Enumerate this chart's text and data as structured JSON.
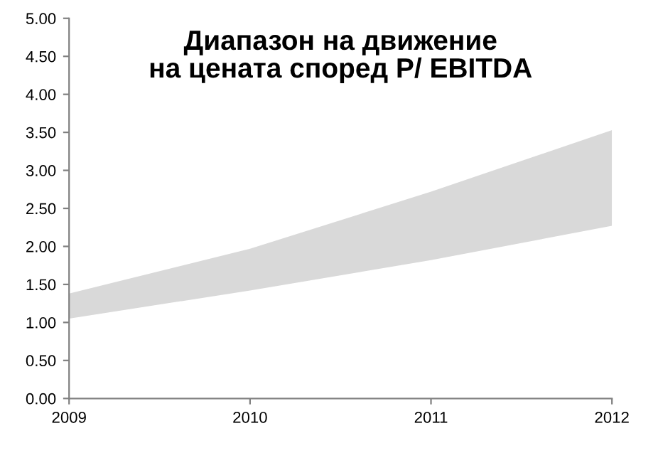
{
  "chart_data": {
    "type": "area",
    "title": "Диапазон на движение\nна цената според P/ EBITDA",
    "x": [
      2009,
      2010,
      2011,
      2012
    ],
    "series": [
      {
        "color": "#d9d9d9",
        "values": [
          null,
          null,
          null,
          null
        ],
        "lower": [
          1.05,
          1.42,
          1.82,
          2.27
        ],
        "upper": [
          1.38,
          1.97,
          2.72,
          3.53
        ]
      }
    ],
    "xlim": [
      2009,
      2012
    ],
    "xticks": [
      2009,
      2010,
      2011,
      2012
    ],
    "ylim": [
      0,
      5
    ],
    "yticks": [
      {
        "value": 0,
        "label": "0.00"
      },
      {
        "value": 0.5,
        "label": "0.50"
      },
      {
        "value": 1,
        "label": "1.00"
      },
      {
        "value": 1.5,
        "label": "1.50"
      },
      {
        "value": 2,
        "label": "2.00"
      },
      {
        "value": 2.5,
        "label": "2.50"
      },
      {
        "value": 3,
        "label": "3.00"
      },
      {
        "value": 3.5,
        "label": "3.50"
      },
      {
        "value": 4,
        "label": "4.00"
      },
      {
        "value": 4.5,
        "label": "4.50"
      },
      {
        "value": 5,
        "label": "5.00"
      }
    ],
    "grid": false
  }
}
